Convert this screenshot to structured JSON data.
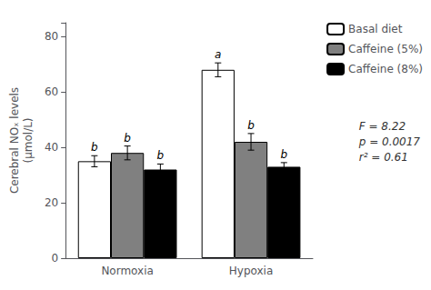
{
  "chart_data": {
    "type": "bar",
    "categories": [
      "Normoxia",
      "Hypoxia"
    ],
    "series": [
      {
        "name": "Basal diet",
        "color": "#ffffff",
        "values": [
          35.0,
          68.0
        ],
        "errors": [
          2.0,
          2.5
        ],
        "letters": [
          "b",
          "a"
        ]
      },
      {
        "name": "Caffeine (5%)",
        "color": "#808080",
        "values": [
          38.0,
          42.0
        ],
        "errors": [
          2.5,
          3.0
        ],
        "letters": [
          "b",
          "b"
        ]
      },
      {
        "name": "Caffeine (8%)",
        "color": "#000000",
        "values": [
          32.0,
          33.0
        ],
        "errors": [
          2.0,
          1.5
        ],
        "letters": [
          "b",
          "b"
        ]
      }
    ],
    "ylabel": "Cerebral NOₓ levels\n(μmol/L)",
    "ylim": [
      0,
      85
    ],
    "yticks": [
      0,
      20,
      40,
      60,
      80
    ],
    "annotation": "F = 8.22\np = 0.0017\nr² = 0.61",
    "legend": "upper right",
    "grid": false
  }
}
